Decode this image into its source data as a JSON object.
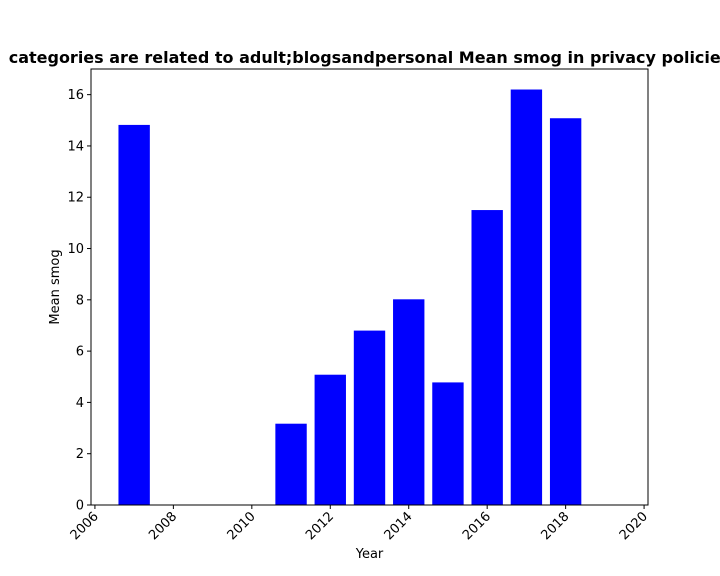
{
  "chart_data": {
    "type": "bar",
    "title": "categories are related to adult;blogsandpersonal Mean smog in privacy policies",
    "xlabel": "Year",
    "ylabel": "Mean smog",
    "x": [
      2007,
      2011,
      2012,
      2013,
      2014,
      2015,
      2016,
      2017,
      2018
    ],
    "values": [
      14.82,
      3.17,
      5.08,
      6.8,
      8.02,
      4.78,
      11.5,
      16.2,
      15.08
    ],
    "bar_width_years": 0.8,
    "xlim": [
      2005.9,
      2020.1
    ],
    "ylim": [
      0,
      17
    ],
    "xticks": [
      2006,
      2008,
      2010,
      2012,
      2014,
      2016,
      2018,
      2020
    ],
    "yticks": [
      0,
      2,
      4,
      6,
      8,
      10,
      12,
      14,
      16
    ],
    "xtick_rotation": -45,
    "bar_color": "#0000ff",
    "grid": false,
    "legend": "none"
  }
}
